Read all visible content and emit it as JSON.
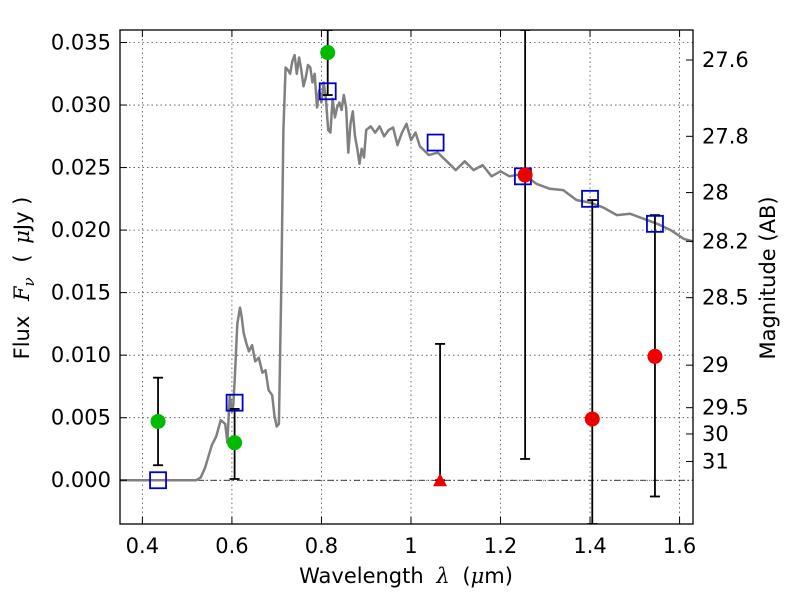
{
  "chart_data": {
    "type": "scatter",
    "title": "",
    "xlabel_prefix": "Wavelength",
    "xlabel_symbol": "λ",
    "xlabel_unit_open": "(",
    "xlabel_unit_mu": "μ",
    "xlabel_unit_rest": "m)",
    "ylabel_prefix": "Flux",
    "ylabel_symbol": "F",
    "ylabel_sub": "ν",
    "ylabel_unit_open": "(",
    "ylabel_unit_mu": "μ",
    "ylabel_unit_rest": "Jy )",
    "y2label": "Magnitude (AB)",
    "xlim": [
      0.35,
      1.63
    ],
    "ylim": [
      -0.0035,
      0.036
    ],
    "grid": true,
    "x_ticks": [
      {
        "value": 0.4,
        "label": "0.4"
      },
      {
        "value": 0.6,
        "label": "0.6"
      },
      {
        "value": 0.8,
        "label": "0.8"
      },
      {
        "value": 1.0,
        "label": "1"
      },
      {
        "value": 1.2,
        "label": "1.2"
      },
      {
        "value": 1.4,
        "label": "1.4"
      },
      {
        "value": 1.6,
        "label": "1.6"
      }
    ],
    "y_ticks": [
      {
        "value": 0.0,
        "label": "0.000"
      },
      {
        "value": 0.005,
        "label": "0.005"
      },
      {
        "value": 0.01,
        "label": "0.010"
      },
      {
        "value": 0.015,
        "label": "0.015"
      },
      {
        "value": 0.02,
        "label": "0.020"
      },
      {
        "value": 0.025,
        "label": "0.025"
      },
      {
        "value": 0.03,
        "label": "0.030"
      },
      {
        "value": 0.035,
        "label": "0.035"
      }
    ],
    "y2_ticks": [
      {
        "flux": 0.0336,
        "label": "27.6"
      },
      {
        "flux": 0.0275,
        "label": "27.8"
      },
      {
        "flux": 0.023,
        "label": "28"
      },
      {
        "flux": 0.0191,
        "label": "28.2"
      },
      {
        "flux": 0.0146,
        "label": "28.5"
      },
      {
        "flux": 0.0092,
        "label": "29"
      },
      {
        "flux": 0.0058,
        "label": "29.5"
      },
      {
        "flux": 0.0037,
        "label": "30"
      },
      {
        "flux": 0.0015,
        "label": "31"
      }
    ],
    "colors": {
      "model": "#808080",
      "model_points": "#0000cc",
      "detections_optical": "#00bb00",
      "detections_nir": "#ee0000",
      "upper_limit": "#ee0000",
      "errorbar": "#000000"
    },
    "series": [
      {
        "name": "model spectrum",
        "kind": "line",
        "x": [
          0.35,
          0.52,
          0.53,
          0.54,
          0.555,
          0.565,
          0.575,
          0.585,
          0.59,
          0.595,
          0.6,
          0.603,
          0.607,
          0.612,
          0.618,
          0.622,
          0.626,
          0.632,
          0.638,
          0.645,
          0.652,
          0.66,
          0.668,
          0.675,
          0.682,
          0.69,
          0.695,
          0.7,
          0.705,
          0.71,
          0.715,
          0.72,
          0.725,
          0.73,
          0.735,
          0.74,
          0.745,
          0.75,
          0.755,
          0.76,
          0.765,
          0.77,
          0.775,
          0.78,
          0.785,
          0.79,
          0.795,
          0.8,
          0.805,
          0.81,
          0.815,
          0.82,
          0.825,
          0.83,
          0.835,
          0.84,
          0.845,
          0.85,
          0.855,
          0.86,
          0.865,
          0.87,
          0.875,
          0.88,
          0.885,
          0.89,
          0.895,
          0.9,
          0.91,
          0.92,
          0.93,
          0.94,
          0.95,
          0.96,
          0.97,
          0.98,
          0.99,
          1.0,
          1.01,
          1.02,
          1.04,
          1.06,
          1.08,
          1.1,
          1.12,
          1.14,
          1.16,
          1.18,
          1.2,
          1.22,
          1.25,
          1.28,
          1.31,
          1.34,
          1.37,
          1.4,
          1.43,
          1.46,
          1.49,
          1.52,
          1.55,
          1.58,
          1.61,
          1.63
        ],
        "y": [
          0,
          0,
          0.0002,
          0.001,
          0.0028,
          0.0035,
          0.0048,
          0.0045,
          0.003,
          0.0068,
          0.0055,
          0.006,
          0.0085,
          0.0125,
          0.0138,
          0.013,
          0.0118,
          0.011,
          0.0103,
          0.0108,
          0.0095,
          0.0098,
          0.0086,
          0.0088,
          0.0072,
          0.0068,
          0.0052,
          0.0043,
          0.0045,
          0.015,
          0.028,
          0.033,
          0.0328,
          0.0325,
          0.0335,
          0.034,
          0.0325,
          0.0338,
          0.0328,
          0.0315,
          0.0322,
          0.0332,
          0.033,
          0.0318,
          0.0325,
          0.0298,
          0.0312,
          0.0302,
          0.0318,
          0.0305,
          0.028,
          0.0278,
          0.0305,
          0.029,
          0.0298,
          0.0302,
          0.0296,
          0.0308,
          0.0298,
          0.0262,
          0.0285,
          0.0295,
          0.0275,
          0.0265,
          0.0253,
          0.0265,
          0.0258,
          0.028,
          0.0283,
          0.0278,
          0.0283,
          0.0275,
          0.028,
          0.0282,
          0.0268,
          0.0278,
          0.0285,
          0.0272,
          0.0278,
          0.0267,
          0.026,
          0.0262,
          0.0255,
          0.0248,
          0.0255,
          0.0248,
          0.0252,
          0.0243,
          0.0247,
          0.0243,
          0.0245,
          0.0237,
          0.0233,
          0.0232,
          0.0224,
          0.0222,
          0.0218,
          0.0212,
          0.0213,
          0.0209,
          0.0205,
          0.02,
          0.0193,
          0.0191
        ]
      },
      {
        "name": "model photometry",
        "kind": "open-square",
        "x": [
          0.435,
          0.606,
          0.814,
          1.055,
          1.25,
          1.4,
          1.545
        ],
        "y": [
          0.0,
          0.0062,
          0.0311,
          0.027,
          0.0243,
          0.0225,
          0.0205
        ]
      },
      {
        "name": "optical detections",
        "kind": "filled-circle",
        "color_key": "detections_optical",
        "x": [
          0.435,
          0.606,
          0.814
        ],
        "y": [
          0.0047,
          0.003,
          0.0342
        ],
        "err_low": [
          0.0012,
          0.0001,
          0.0308
        ],
        "err_high": [
          0.0082,
          0.0057,
          0.036
        ]
      },
      {
        "name": "near-IR detections",
        "kind": "filled-circle",
        "color_key": "detections_nir",
        "x": [
          1.255,
          1.405,
          1.545
        ],
        "y": [
          0.0244,
          0.0049,
          0.0099
        ],
        "err_low": [
          0.0017,
          -0.0035,
          -0.0013
        ],
        "err_high": [
          0.036,
          0.0224,
          0.0212
        ]
      },
      {
        "name": "non-detection",
        "kind": "triangle",
        "color_key": "upper_limit",
        "x": [
          1.065
        ],
        "y": [
          0.0
        ],
        "err_low": [
          0.0
        ],
        "err_high": [
          0.0109
        ]
      }
    ]
  }
}
